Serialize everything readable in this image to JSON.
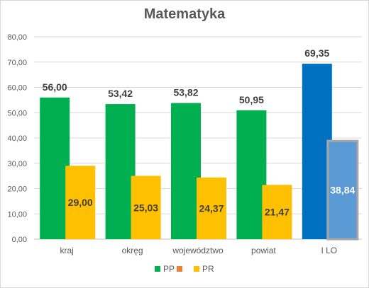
{
  "chart_data": {
    "type": "bar",
    "title": "Matematyka",
    "categories": [
      "kraj",
      "okręg",
      "województwo",
      "powiat",
      "I LO"
    ],
    "series": [
      {
        "name": "PP",
        "color": "#00b050",
        "values": [
          56.0,
          53.42,
          53.82,
          50.95,
          null
        ],
        "labels": [
          "56,00",
          "53,42",
          "53,82",
          "50,95",
          null
        ]
      },
      {
        "name": "",
        "color": "#ed7d31",
        "values": [
          null,
          null,
          null,
          null,
          null
        ],
        "labels": [
          null,
          null,
          null,
          null,
          null
        ]
      },
      {
        "name": "PR",
        "color": "#ffc000",
        "values": [
          29.0,
          25.03,
          24.37,
          21.47,
          null
        ],
        "labels": [
          "29,00",
          "25,03",
          "24,37",
          "21,47",
          null
        ]
      }
    ],
    "highlight": {
      "category": "I LO",
      "pp": {
        "value": 69.35,
        "label": "69,35",
        "color": "#0070c0"
      },
      "pr": {
        "value": 38.84,
        "label": "38,84",
        "color": "#5b9bd5",
        "border": "#a6a6a6"
      }
    },
    "ylim": [
      0,
      80
    ],
    "yticks": [
      0,
      10,
      20,
      30,
      40,
      50,
      60,
      70,
      80
    ],
    "ytick_labels": [
      "0,00",
      "10,00",
      "20,00",
      "30,00",
      "40,00",
      "50,00",
      "60,00",
      "70,00",
      "80,00"
    ],
    "grid": true,
    "legend": {
      "placement": "bottom",
      "entries": [
        "PP",
        "",
        "PR"
      ]
    },
    "xlabel": "",
    "ylabel": ""
  }
}
